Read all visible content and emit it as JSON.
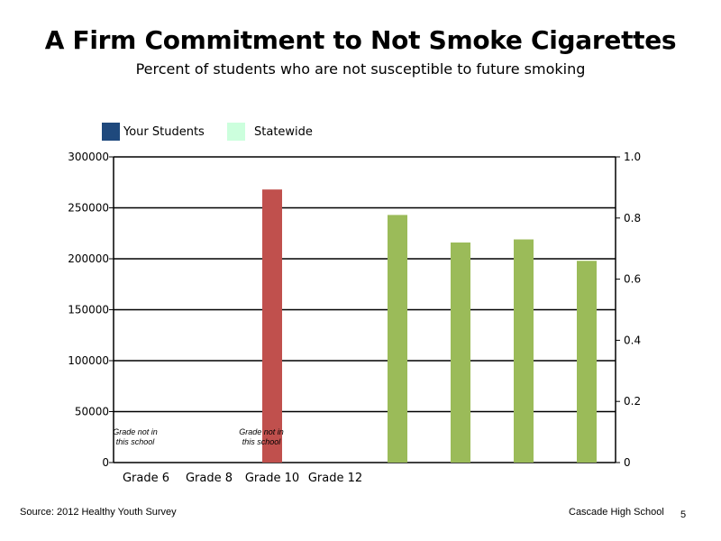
{
  "title": "A Firm Commitment to Not Smoke Cigarettes",
  "subtitle": "Percent of students who are not susceptible to future smoking",
  "legend": [
    {
      "label": "Your Students",
      "color": "#1f497d"
    },
    {
      "label": "Statewide",
      "color": "#ccffdd"
    }
  ],
  "chart_data": {
    "type": "bar",
    "title": "A Firm Commitment to Not Smoke Cigarettes",
    "subtitle": "Percent of students who are not susceptible to future smoking",
    "categories": [
      "Grade 6",
      "Grade 8",
      "Grade 10",
      "Grade 12"
    ],
    "y_left": {
      "min": 0,
      "max": 300000,
      "ticks": [
        0,
        50000,
        100000,
        150000,
        200000,
        250000,
        300000
      ]
    },
    "y_right": {
      "min": 0,
      "max": 1.0,
      "ticks": [
        "0",
        "0.2",
        "0.4",
        "0.6",
        "0.8",
        "1.0"
      ]
    },
    "grid": true,
    "legend_position": "top-left",
    "series": [
      {
        "name": "",
        "axis": "left",
        "color": "#c0504d",
        "values": [
          null,
          null,
          268000,
          null
        ]
      },
      {
        "name": "",
        "axis": "left",
        "color": "#9bbb59",
        "values": [
          243000,
          216000,
          219000,
          198000
        ]
      }
    ],
    "annotations": [
      {
        "category": "Grade 6",
        "lines": [
          "Grade not in",
          "this school"
        ]
      },
      {
        "category": "Grade 10",
        "lines": [
          "Grade not in",
          "this school"
        ]
      }
    ]
  },
  "footer": {
    "source": "Source: 2012 Healthy Youth Survey",
    "school": "Cascade High School",
    "page": "5"
  }
}
